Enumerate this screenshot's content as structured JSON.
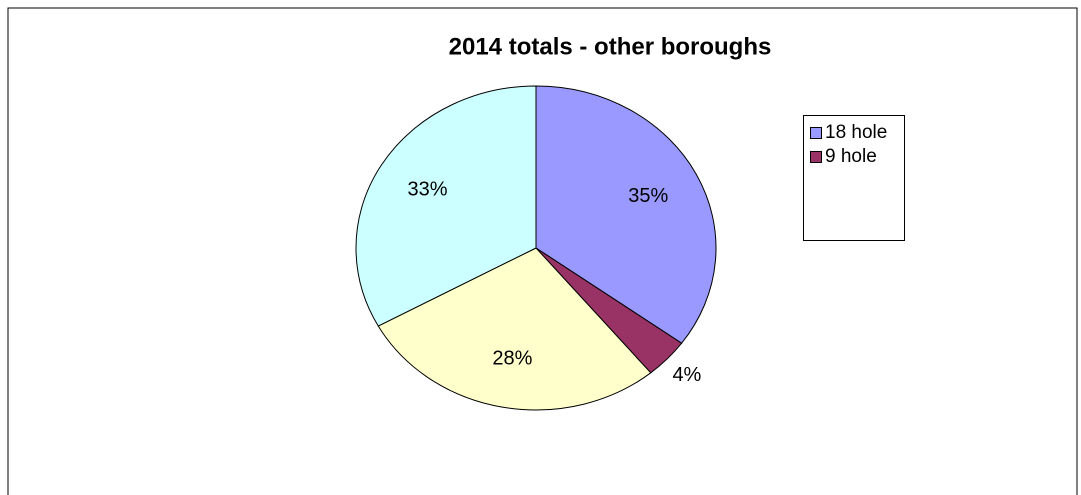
{
  "chart_data": {
    "type": "pie",
    "title": "2014 totals - other boroughs",
    "categories": [
      "18 hole",
      "9 hole",
      null,
      null
    ],
    "values": [
      35,
      4,
      28,
      33
    ],
    "value_labels": [
      "35%",
      "4%",
      "28%",
      "33%"
    ],
    "colors": [
      "#9999ff",
      "#993366",
      "#ffffcc",
      "#ccffff"
    ],
    "legend": "right"
  }
}
